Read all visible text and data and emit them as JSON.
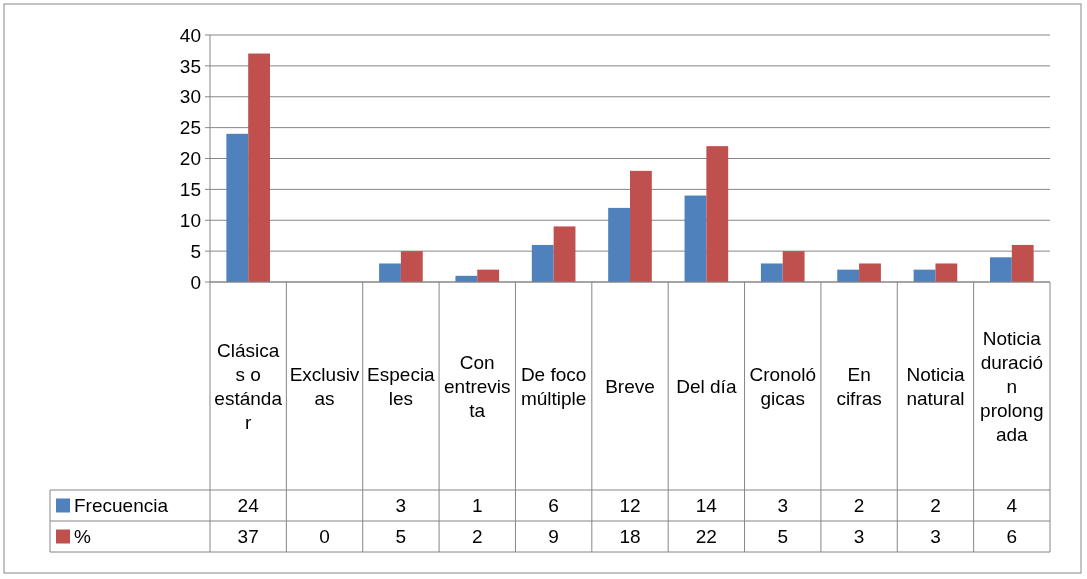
{
  "chart_data": {
    "type": "bar",
    "categories": [
      "Clásicas o estándar",
      "Exclusivas",
      "Especiales",
      "Con entrevista",
      "De foco múltiple",
      "Breve",
      "Del día",
      "Cronológicas",
      "En cifras",
      "Noticia natural",
      "Noticia duración prolongada"
    ],
    "series": [
      {
        "name": "Frecuencia",
        "color": "#4f81bd",
        "values": [
          24,
          null,
          3,
          1,
          6,
          12,
          14,
          3,
          2,
          2,
          4
        ]
      },
      {
        "name": "%",
        "color": "#c0504d",
        "values": [
          37,
          0,
          5,
          2,
          9,
          18,
          22,
          5,
          3,
          3,
          6
        ]
      }
    ],
    "ylim": [
      0,
      40
    ],
    "yticks": [
      0,
      5,
      10,
      15,
      20,
      25,
      30,
      35,
      40
    ],
    "grid": "y",
    "legend": "bottom",
    "data_labels": true
  }
}
